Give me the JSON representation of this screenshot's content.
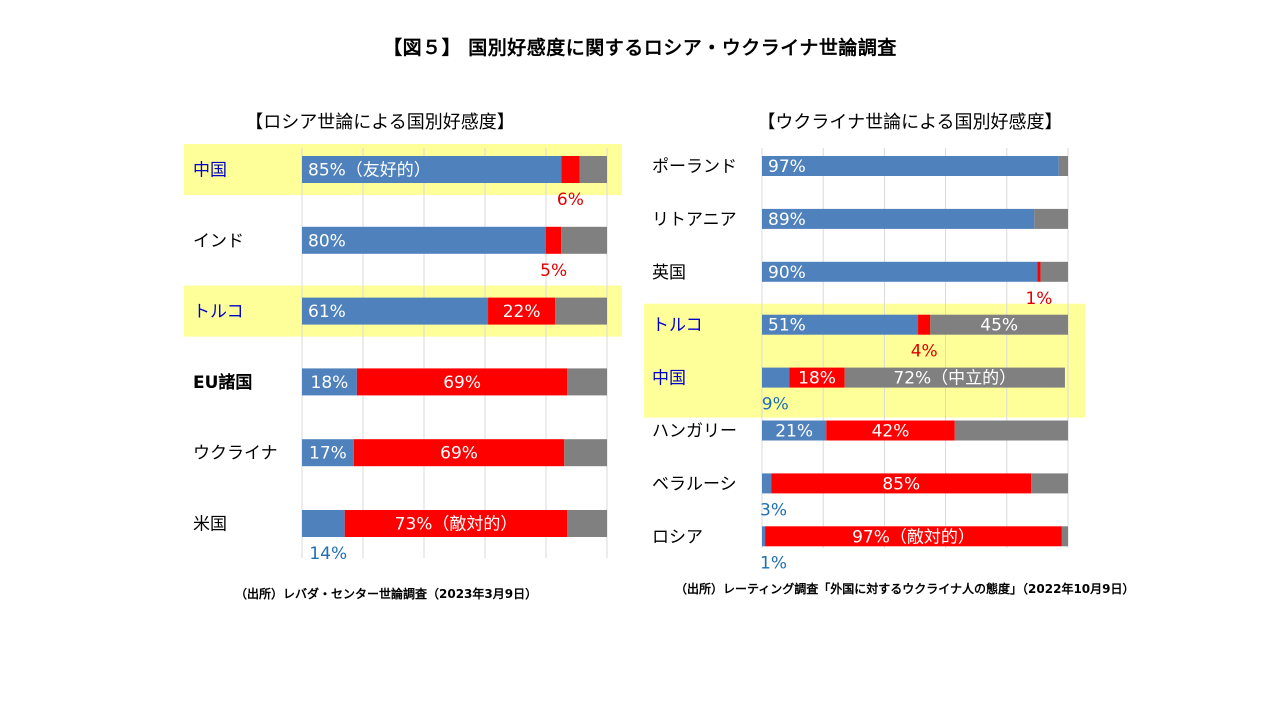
{
  "title": "【図５】 国別好感度に関するロシア・ウクライナ世論調査",
  "colors": {
    "friendly": "#4f81bd",
    "hostile": "#ff0000",
    "neutral": "#808080",
    "highlight": "#ffff99",
    "highlight_label": "#0000cc",
    "outside_blue": "#1f6fb0",
    "outside_red": "#e00000",
    "grid": "#d9d9d9"
  },
  "chart_data": [
    {
      "type": "bar",
      "stacked": true,
      "orientation": "horizontal",
      "title": "【ロシア世論による国別好感度】",
      "source": "（出所）レバダ・センター世論調査（2023年3月9日）",
      "series_names": [
        "友好的",
        "敵対的",
        "中立的"
      ],
      "xlim": [
        0,
        100
      ],
      "grid": true,
      "categories": [
        {
          "name": "中国",
          "highlight": true,
          "friendly": 85,
          "hostile": 6,
          "neutral": 9,
          "labels": [
            {
              "seg": "friendly",
              "text": "85%（友好的）",
              "pos": "inside"
            },
            {
              "seg": "hostile",
              "text": "6%",
              "pos": "below"
            }
          ]
        },
        {
          "name": "インド",
          "friendly": 80,
          "hostile": 5,
          "neutral": 15,
          "labels": [
            {
              "seg": "friendly",
              "text": "80%",
              "pos": "inside"
            },
            {
              "seg": "hostile",
              "text": "5%",
              "pos": "below"
            }
          ]
        },
        {
          "name": "トルコ",
          "highlight": true,
          "friendly": 61,
          "hostile": 22,
          "neutral": 17,
          "labels": [
            {
              "seg": "friendly",
              "text": "61%",
              "pos": "inside"
            },
            {
              "seg": "hostile",
              "text": "22%",
              "pos": "inside"
            }
          ]
        },
        {
          "name": "EU諸国",
          "bold": true,
          "friendly": 18,
          "hostile": 69,
          "neutral": 13,
          "labels": [
            {
              "seg": "friendly",
              "text": "18%",
              "pos": "inside"
            },
            {
              "seg": "hostile",
              "text": "69%",
              "pos": "inside"
            }
          ]
        },
        {
          "name": "ウクライナ",
          "friendly": 17,
          "hostile": 69,
          "neutral": 14,
          "labels": [
            {
              "seg": "friendly",
              "text": "17%",
              "pos": "inside"
            },
            {
              "seg": "hostile",
              "text": "69%",
              "pos": "inside"
            }
          ]
        },
        {
          "name": "米国",
          "friendly": 14,
          "hostile": 73,
          "neutral": 13,
          "labels": [
            {
              "seg": "friendly",
              "text": "14%",
              "pos": "below"
            },
            {
              "seg": "hostile",
              "text": "73%（敵対的）",
              "pos": "inside"
            }
          ]
        }
      ]
    },
    {
      "type": "bar",
      "stacked": true,
      "orientation": "horizontal",
      "title": "【ウクライナ世論による国別好感度】",
      "source": "（出所）レーティング調査「外国に対するウクライナ人の態度」（2022年10月9日）",
      "series_names": [
        "友好的",
        "敵対的",
        "中立的"
      ],
      "xlim": [
        0,
        100
      ],
      "grid": true,
      "categories": [
        {
          "name": "ポーランド",
          "friendly": 97,
          "hostile": 0,
          "neutral": 3,
          "labels": [
            {
              "seg": "friendly",
              "text": "97%",
              "pos": "inside"
            }
          ]
        },
        {
          "name": "リトアニア",
          "friendly": 89,
          "hostile": 0,
          "neutral": 11,
          "labels": [
            {
              "seg": "friendly",
              "text": "89%",
              "pos": "inside"
            }
          ]
        },
        {
          "name": "英国",
          "friendly": 90,
          "hostile": 1,
          "neutral": 9,
          "labels": [
            {
              "seg": "friendly",
              "text": "90%",
              "pos": "inside"
            },
            {
              "seg": "hostile",
              "text": "1%",
              "pos": "below"
            }
          ]
        },
        {
          "name": "トルコ",
          "highlight": true,
          "friendly": 51,
          "hostile": 4,
          "neutral": 45,
          "labels": [
            {
              "seg": "friendly",
              "text": "51%",
              "pos": "inside"
            },
            {
              "seg": "hostile",
              "text": "4%",
              "pos": "below"
            },
            {
              "seg": "neutral",
              "text": "45%",
              "pos": "inside"
            }
          ]
        },
        {
          "name": "中国",
          "highlight": true,
          "friendly": 9,
          "hostile": 18,
          "neutral": 72,
          "labels": [
            {
              "seg": "friendly",
              "text": "9%",
              "pos": "below"
            },
            {
              "seg": "hostile",
              "text": "18%",
              "pos": "inside"
            },
            {
              "seg": "neutral",
              "text": "72%（中立的）",
              "pos": "inside"
            }
          ]
        },
        {
          "name": "ハンガリー",
          "friendly": 21,
          "hostile": 42,
          "neutral": 37,
          "labels": [
            {
              "seg": "friendly",
              "text": "21%",
              "pos": "inside"
            },
            {
              "seg": "hostile",
              "text": "42%",
              "pos": "inside"
            }
          ]
        },
        {
          "name": "ベラルーシ",
          "friendly": 3,
          "hostile": 85,
          "neutral": 12,
          "labels": [
            {
              "seg": "friendly",
              "text": "3%",
              "pos": "below"
            },
            {
              "seg": "hostile",
              "text": "85%",
              "pos": "inside"
            }
          ]
        },
        {
          "name": "ロシア",
          "friendly": 1,
          "hostile": 97,
          "neutral": 2,
          "labels": [
            {
              "seg": "friendly",
              "text": "1%",
              "pos": "below"
            },
            {
              "seg": "hostile",
              "text": "97%（敵対的）",
              "pos": "inside"
            }
          ]
        }
      ]
    }
  ]
}
